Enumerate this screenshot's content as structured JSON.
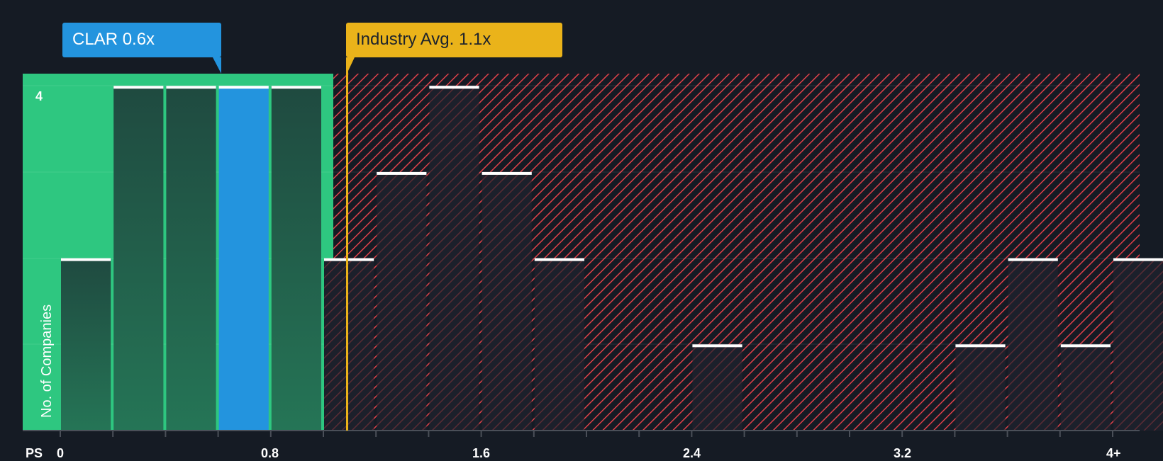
{
  "company_label": "CLAR 0.6x",
  "industry_label": "Industry Avg. 1.1x",
  "axis": {
    "x_prefix": "PS",
    "x_ticks": [
      "0",
      "0.8",
      "1.6",
      "2.4",
      "3.2",
      "4+"
    ],
    "y_tick": "4",
    "y_label": "No. of Companies"
  },
  "colors": {
    "background": "#151b24",
    "fair_region": "#2ec780",
    "company_bar": "#2394de",
    "industry_line": "#eab31a",
    "overvalued_hatch": "#e0414a",
    "bar_dark_green": "#1f4a40",
    "bar_dark": "#1c202b"
  },
  "chart_data": {
    "type": "bar",
    "title": "",
    "xlabel": "PS",
    "ylabel": "No. of Companies",
    "categories": [
      "0.0-0.2",
      "0.2-0.4",
      "0.4-0.6",
      "0.6-0.8",
      "0.8-1.0",
      "1.0-1.2",
      "1.2-1.4",
      "1.4-1.6",
      "1.6-1.8",
      "1.8-2.0",
      "2.0-2.2",
      "2.2-2.4",
      "2.4-2.6",
      "2.6-2.8",
      "2.8-3.0",
      "3.0-3.2",
      "3.2-3.4",
      "3.4-3.6",
      "3.6-3.8",
      "3.8-4.0",
      "4+"
    ],
    "values": [
      2,
      4,
      4,
      4,
      4,
      2,
      3,
      4,
      3,
      2,
      0,
      0,
      1,
      0,
      0,
      0,
      0,
      1,
      2,
      1,
      2
    ],
    "highlight_bin": "0.6-0.8",
    "company_value": 0.6,
    "industry_avg": 1.1,
    "x_ticks": [
      0,
      0.8,
      1.6,
      2.4,
      3.2,
      "4+"
    ],
    "ylim": [
      0,
      4.1
    ],
    "grid": true
  }
}
